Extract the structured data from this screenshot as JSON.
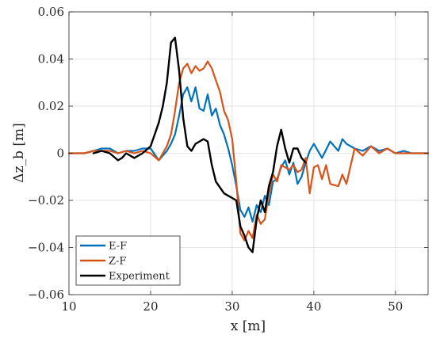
{
  "chart_data": {
    "type": "line",
    "title": "",
    "xlabel": "x [m]",
    "ylabel": "Δz_b [m]",
    "xlim": [
      10,
      54
    ],
    "ylim": [
      -0.06,
      0.06
    ],
    "xticks": [
      10,
      20,
      30,
      40,
      50
    ],
    "yticks": [
      -0.06,
      -0.04,
      -0.02,
      0,
      0.02,
      0.04,
      0.06
    ],
    "xtick_labels": [
      "10",
      "20",
      "30",
      "40",
      "50"
    ],
    "ytick_labels": [
      "−0.06",
      "−0.04",
      "−0.02",
      "0",
      "0.02",
      "0.04",
      "0.06"
    ],
    "grid": true,
    "legend_position": "bottom-left",
    "series": [
      {
        "name": "E-F",
        "color": "#0072BD",
        "x": [
          10,
          11.9,
          13,
          14,
          15,
          16,
          17,
          18,
          19,
          20,
          21,
          22,
          22.5,
          23,
          23.5,
          24,
          24.5,
          25,
          25.5,
          26,
          26.5,
          27,
          27.5,
          28,
          28.5,
          29,
          29.5,
          30,
          30.5,
          31,
          31.5,
          32,
          32.5,
          33,
          33.5,
          34,
          34.5,
          35,
          35.5,
          36,
          36.5,
          37,
          37.5,
          38,
          38.5,
          39,
          39.5,
          40,
          41,
          42,
          43,
          43.5,
          44,
          45,
          46,
          47,
          48,
          49,
          50,
          51,
          52,
          52.5,
          54
        ],
        "y": [
          0,
          0,
          0.001,
          0.002,
          0.002,
          0,
          0.001,
          0.001,
          0.002,
          0.002,
          -0.003,
          0.001,
          0.004,
          0.008,
          0.016,
          0.025,
          0.028,
          0.022,
          0.028,
          0.019,
          0.018,
          0.025,
          0.016,
          0.019,
          0.012,
          0.008,
          0.002,
          -0.005,
          -0.014,
          -0.024,
          -0.027,
          -0.023,
          -0.029,
          -0.022,
          -0.025,
          -0.018,
          -0.022,
          -0.012,
          -0.011,
          -0.006,
          -0.003,
          -0.009,
          -0.004,
          -0.013,
          -0.01,
          -0.004,
          0.001,
          0.004,
          -0.002,
          0.005,
          0.001,
          0.006,
          0.004,
          0.002,
          0.001,
          0.003,
          0.001,
          0.002,
          0,
          0.001,
          0,
          0,
          0
        ]
      },
      {
        "name": "Z-F",
        "color": "#D95319",
        "x": [
          10,
          11.9,
          13,
          14,
          15,
          16,
          17,
          18,
          19,
          20,
          21,
          22,
          22.5,
          23,
          23.5,
          24,
          24.5,
          25,
          25.5,
          26,
          26.5,
          27,
          27.5,
          28,
          28.5,
          29,
          29.5,
          30,
          30.5,
          31,
          31.5,
          32,
          32.5,
          33,
          33.5,
          34,
          34.5,
          35,
          35.5,
          36,
          36.5,
          37,
          37.5,
          38,
          38.5,
          39,
          39.5,
          40,
          40.5,
          41,
          41.5,
          42,
          43,
          43.5,
          44,
          45,
          46,
          47,
          48,
          49,
          50,
          51,
          52,
          52.5,
          54
        ],
        "y": [
          0,
          0,
          0.001,
          0.001,
          0.001,
          0,
          0.001,
          0,
          0.001,
          0,
          -0.003,
          0.003,
          0.008,
          0.018,
          0.03,
          0.036,
          0.038,
          0.034,
          0.037,
          0.035,
          0.036,
          0.039,
          0.036,
          0.031,
          0.026,
          0.018,
          0.014,
          0.006,
          -0.012,
          -0.034,
          -0.037,
          -0.033,
          -0.036,
          -0.026,
          -0.03,
          -0.028,
          -0.017,
          -0.009,
          -0.012,
          -0.005,
          -0.006,
          -0.007,
          -0.005,
          -0.008,
          -0.007,
          -0.002,
          -0.017,
          -0.006,
          -0.005,
          -0.011,
          -0.005,
          -0.013,
          -0.014,
          -0.009,
          -0.013,
          0.002,
          -0.001,
          0.003,
          0,
          0.002,
          0,
          0,
          0,
          0,
          0
        ]
      },
      {
        "name": "Experiment",
        "color": "#000000",
        "x": [
          13,
          14,
          15,
          16,
          16.5,
          17,
          18,
          19,
          20,
          21,
          21.5,
          22,
          22.5,
          23,
          23.5,
          24,
          24.5,
          25,
          25.5,
          26,
          26.5,
          27,
          27.5,
          28,
          29,
          30,
          30.5,
          31,
          31.5,
          32,
          32.5,
          33,
          33.5,
          34,
          34.5,
          35,
          35.5,
          36,
          36.5,
          37,
          37.5,
          38,
          38.5,
          39
        ],
        "y": [
          0,
          0.001,
          0,
          -0.003,
          -0.002,
          0,
          -0.002,
          0,
          0.003,
          0.013,
          0.02,
          0.03,
          0.047,
          0.049,
          0.035,
          0.015,
          0.003,
          0.001,
          0.004,
          0.005,
          0.006,
          0.005,
          -0.005,
          -0.012,
          -0.017,
          -0.019,
          -0.02,
          -0.031,
          -0.035,
          -0.04,
          -0.042,
          -0.028,
          -0.02,
          -0.025,
          -0.014,
          -0.008,
          0.003,
          0.01,
          0.002,
          -0.004,
          0.002,
          0.002,
          -0.002,
          -0.004
        ]
      }
    ]
  }
}
